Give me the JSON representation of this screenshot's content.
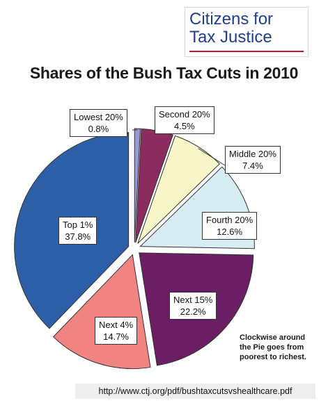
{
  "logo": {
    "line1": "Citizens for",
    "line2": "Tax Justice"
  },
  "url": "http://www.ctj.org/pdf/bushtaxcutsvshealthcare.pdf",
  "note": [
    "Clockwise around",
    "the Pie goes from",
    "poorest to richest."
  ],
  "chart_data": {
    "type": "pie",
    "title": "Shares of the Bush Tax Cuts in 2010",
    "direction": "clockwise",
    "slices": [
      {
        "label": "Lowest 20%",
        "value_label": "0.8%",
        "value": 0.8,
        "color": "#9a9ad2"
      },
      {
        "label": "Second 20%",
        "value_label": "4.5%",
        "value": 4.5,
        "color": "#8b2c5e"
      },
      {
        "label": "Middle 20%",
        "value_label": "7.4%",
        "value": 7.4,
        "color": "#f8f5c8"
      },
      {
        "label": "Fourth 20%",
        "value_label": "12.6%",
        "value": 12.6,
        "color": "#d6eef3"
      },
      {
        "label": "Next 15%",
        "value_label": "22.2%",
        "value": 22.2,
        "color": "#6b1e63"
      },
      {
        "label": "Next 4%",
        "value_label": "14.7%",
        "value": 14.7,
        "color": "#f28383"
      },
      {
        "label": "Top 1%",
        "value_label": "37.8%",
        "value": 37.8,
        "color": "#2d5fa8"
      }
    ]
  }
}
